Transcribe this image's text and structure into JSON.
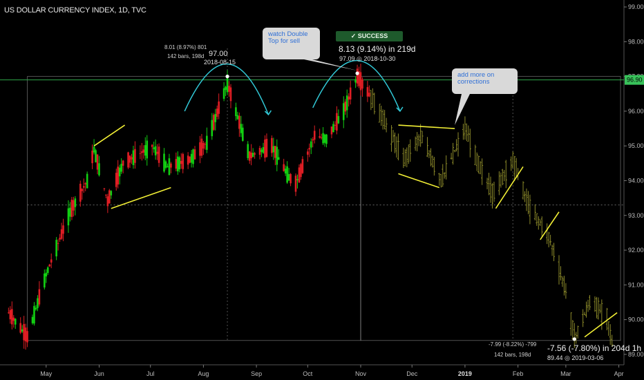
{
  "header": {
    "title": "US DOLLAR CURRENCY INDEX, 1D, TVC"
  },
  "callouts": {
    "double_top": "watch Double Top for sell",
    "corrections": "add more on corrections"
  },
  "badge": {
    "check": "✓",
    "text": "SUCCESS"
  },
  "measure_left": {
    "line1": "8.01 (8.97%) 801",
    "line2": "142 bars, 198d",
    "price": "97.00",
    "date": "2018-08-15"
  },
  "measure_top": {
    "main": "8.13 (9.14%) in 219d",
    "sub": "97.09  ◎  2018-10-30"
  },
  "measure_bottom": {
    "main": "-7.56 (-7.80%) in 204d 1h",
    "sub": "89.44  ◎  2019-03-06"
  },
  "measure_bottom_left": {
    "line1": "-7.99 (-8.22%) -799",
    "line2": "142 bars, 198d"
  },
  "colors": {
    "up": "#12d012",
    "down": "#e01e24",
    "projection": "#8c8a2a",
    "annotation": "#f2ef35",
    "arc": "#31c8d6",
    "hline": "#2fa84a",
    "price_tag": "#38c25a"
  },
  "chart_data": {
    "type": "candlestick",
    "title": "US DOLLAR CURRENCY INDEX, 1D, TVC",
    "ylim": [
      88.7,
      99.2
    ],
    "y_ticks": [
      "99.00",
      "98.00",
      "97.00",
      "96.00",
      "95.00",
      "94.00",
      "93.00",
      "92.00",
      "91.00",
      "90.00",
      "89.00"
    ],
    "x_ticks": [
      "May",
      "Jun",
      "Jul",
      "Aug",
      "Sep",
      "Oct",
      "Nov",
      "Dec",
      "2019",
      "Feb",
      "Mar",
      "Apr"
    ],
    "current_price": "96.90",
    "horizontal_line": 96.9,
    "dotted_levels": [
      93.3
    ],
    "actual_series": [
      {
        "x": "2018-04-09",
        "close": 90.2
      },
      {
        "x": "2018-04-20",
        "close": 89.5
      },
      {
        "x": "2018-05-01",
        "close": 91.3
      },
      {
        "x": "2018-05-15",
        "close": 93.1
      },
      {
        "x": "2018-05-25",
        "close": 94.0
      },
      {
        "x": "2018-05-29",
        "close": 94.9
      },
      {
        "x": "2018-06-06",
        "close": 93.4
      },
      {
        "x": "2018-06-15",
        "close": 94.5
      },
      {
        "x": "2018-06-22",
        "close": 94.7
      },
      {
        "x": "2018-07-02",
        "close": 95.0
      },
      {
        "x": "2018-07-11",
        "close": 94.4
      },
      {
        "x": "2018-07-24",
        "close": 94.6
      },
      {
        "x": "2018-08-03",
        "close": 95.1
      },
      {
        "x": "2018-08-15",
        "close": 96.8
      },
      {
        "x": "2018-08-28",
        "close": 94.7
      },
      {
        "x": "2018-09-10",
        "close": 95.0
      },
      {
        "x": "2018-09-20",
        "close": 94.1
      },
      {
        "x": "2018-09-24",
        "close": 93.9
      },
      {
        "x": "2018-10-05",
        "close": 95.3
      },
      {
        "x": "2018-10-12",
        "close": 95.2
      },
      {
        "x": "2018-10-22",
        "close": 96.0
      },
      {
        "x": "2018-10-30",
        "close": 97.0
      },
      {
        "x": "2018-11-07",
        "close": 96.4
      }
    ],
    "projection_series": [
      {
        "x": "2018-11-07",
        "close": 96.4
      },
      {
        "x": "2018-11-16",
        "close": 95.6
      },
      {
        "x": "2018-11-26",
        "close": 94.6
      },
      {
        "x": "2018-12-06",
        "close": 95.3
      },
      {
        "x": "2018-12-18",
        "close": 94.0
      },
      {
        "x": "2019-01-01",
        "close": 95.5
      },
      {
        "x": "2019-01-08",
        "close": 94.6
      },
      {
        "x": "2019-01-17",
        "close": 93.6
      },
      {
        "x": "2019-01-29",
        "close": 94.6
      },
      {
        "x": "2019-02-07",
        "close": 93.3
      },
      {
        "x": "2019-02-19",
        "close": 92.4
      },
      {
        "x": "2019-03-01",
        "close": 90.8
      },
      {
        "x": "2019-03-06",
        "close": 89.44
      },
      {
        "x": "2019-03-15",
        "close": 90.5
      },
      {
        "x": "2019-03-25",
        "close": 90.1
      },
      {
        "x": "2019-03-29",
        "close": 89.1
      }
    ],
    "annotation_lines": [
      {
        "from": {
          "x": "2018-05-29",
          "y": 95.0
        },
        "to": {
          "x": "2018-06-16",
          "y": 95.6
        }
      },
      {
        "from": {
          "x": "2018-06-08",
          "y": 93.2
        },
        "to": {
          "x": "2018-07-13",
          "y": 93.8
        }
      },
      {
        "from": {
          "x": "2018-11-23",
          "y": 95.6
        },
        "to": {
          "x": "2018-12-26",
          "y": 95.5
        }
      },
      {
        "from": {
          "x": "2018-11-23",
          "y": 94.2
        },
        "to": {
          "x": "2018-12-17",
          "y": 93.8
        }
      },
      {
        "from": {
          "x": "2019-01-19",
          "y": 93.2
        },
        "to": {
          "x": "2019-02-04",
          "y": 94.4
        }
      },
      {
        "from": {
          "x": "2019-02-14",
          "y": 92.3
        },
        "to": {
          "x": "2019-02-25",
          "y": 93.1
        }
      },
      {
        "from": {
          "x": "2019-03-12",
          "y": 89.5
        },
        "to": {
          "x": "2019-03-31",
          "y": 90.2
        }
      }
    ],
    "arcs": [
      {
        "from": {
          "x": "2018-07-21",
          "y": 96.0
        },
        "peak": {
          "x": "2018-08-15",
          "y": 97.0
        },
        "to": {
          "x": "2018-09-08",
          "y": 95.9
        }
      },
      {
        "from": {
          "x": "2018-10-04",
          "y": 96.1
        },
        "peak": {
          "x": "2018-10-30",
          "y": 97.1
        },
        "to": {
          "x": "2018-11-24",
          "y": 96.0
        }
      }
    ],
    "markers": [
      {
        "x": "2018-08-15",
        "y": 97.0
      },
      {
        "x": "2018-10-30",
        "y": 97.09
      },
      {
        "x": "2019-03-06",
        "y": 89.44
      }
    ]
  }
}
